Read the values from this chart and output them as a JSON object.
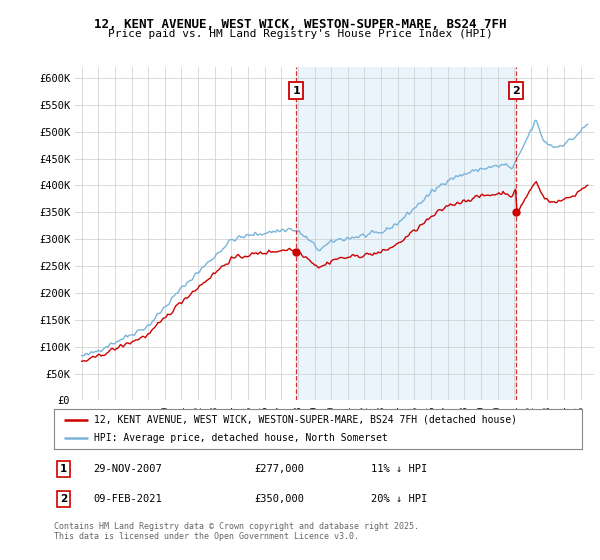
{
  "title_line1": "12, KENT AVENUE, WEST WICK, WESTON-SUPER-MARE, BS24 7FH",
  "title_line2": "Price paid vs. HM Land Registry's House Price Index (HPI)",
  "ylim": [
    0,
    620000
  ],
  "yticks": [
    0,
    50000,
    100000,
    150000,
    200000,
    250000,
    300000,
    350000,
    400000,
    450000,
    500000,
    550000,
    600000
  ],
  "ytick_labels": [
    "£0",
    "£50K",
    "£100K",
    "£150K",
    "£200K",
    "£250K",
    "£300K",
    "£350K",
    "£400K",
    "£450K",
    "£500K",
    "£550K",
    "£600K"
  ],
  "hpi_color": "#7ab4d8",
  "hpi_fill_color": "#d6eaf8",
  "price_color": "#cc0000",
  "dashed_color": "#cc0000",
  "marker1_x": 2007.91,
  "marker1_y": 277000,
  "marker2_x": 2021.11,
  "marker2_y": 350000,
  "xmin": 1994.6,
  "xmax": 2025.8,
  "legend_line1": "12, KENT AVENUE, WEST WICK, WESTON-SUPER-MARE, BS24 7FH (detached house)",
  "legend_line2": "HPI: Average price, detached house, North Somerset",
  "annotation1_date": "29-NOV-2007",
  "annotation1_price": "£277,000",
  "annotation1_hpi": "11% ↓ HPI",
  "annotation2_date": "09-FEB-2021",
  "annotation2_price": "£350,000",
  "annotation2_hpi": "20% ↓ HPI",
  "footer": "Contains HM Land Registry data © Crown copyright and database right 2025.\nThis data is licensed under the Open Government Licence v3.0.",
  "background_color": "#ffffff",
  "grid_color": "#cccccc"
}
